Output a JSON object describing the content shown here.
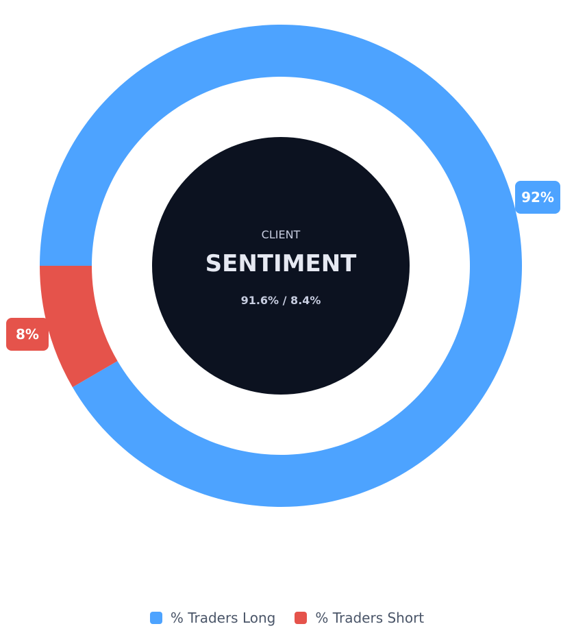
{
  "chart_data": {
    "type": "pie",
    "donut": true,
    "center": {
      "label_top": "CLIENT",
      "label_main": "SENTIMENT",
      "ratio_text": "91.6% / 8.4%"
    },
    "series": [
      {
        "name": "% Traders Long",
        "value": 91.6,
        "data_label": "92%",
        "color": "#4da3ff"
      },
      {
        "name": "% Traders Short",
        "value": 8.4,
        "data_label": "8%",
        "color": "#e5534b"
      }
    ],
    "legend_position": "bottom",
    "center_circle_color": "#0c1220"
  }
}
